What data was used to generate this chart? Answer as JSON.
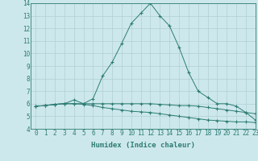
{
  "xlabel": "Humidex (Indice chaleur)",
  "x": [
    0,
    1,
    2,
    3,
    4,
    5,
    6,
    7,
    8,
    9,
    10,
    11,
    12,
    13,
    14,
    15,
    16,
    17,
    18,
    19,
    20,
    21,
    22,
    23
  ],
  "line1_y": [
    5.8,
    5.85,
    5.95,
    6.0,
    6.0,
    6.0,
    6.0,
    6.0,
    6.0,
    6.0,
    6.0,
    6.0,
    6.0,
    5.95,
    5.9,
    5.85,
    5.85,
    5.8,
    5.7,
    5.6,
    5.5,
    5.4,
    5.3,
    5.2
  ],
  "line2_y": [
    5.8,
    5.85,
    5.95,
    6.0,
    6.3,
    6.0,
    6.4,
    8.2,
    9.3,
    10.8,
    12.4,
    13.2,
    14.0,
    13.0,
    12.2,
    10.5,
    8.5,
    7.0,
    6.5,
    6.0,
    6.0,
    5.8,
    5.3,
    4.7
  ],
  "line3_y": [
    5.8,
    5.85,
    5.95,
    6.0,
    6.0,
    5.95,
    5.85,
    5.7,
    5.6,
    5.5,
    5.4,
    5.35,
    5.3,
    5.2,
    5.1,
    5.0,
    4.9,
    4.8,
    4.7,
    4.65,
    4.6,
    4.55,
    4.55,
    4.5
  ],
  "line_color": "#2d7d74",
  "bg_color": "#cde8ec",
  "grid_color": "#b0cfd4",
  "ylim": [
    4,
    14
  ],
  "xlim": [
    -0.5,
    23
  ],
  "yticks": [
    4,
    5,
    6,
    7,
    8,
    9,
    10,
    11,
    12,
    13,
    14
  ],
  "xticks": [
    0,
    1,
    2,
    3,
    4,
    5,
    6,
    7,
    8,
    9,
    10,
    11,
    12,
    13,
    14,
    15,
    16,
    17,
    18,
    19,
    20,
    21,
    22,
    23
  ],
  "tick_fontsize": 5.5,
  "xlabel_fontsize": 6.5
}
